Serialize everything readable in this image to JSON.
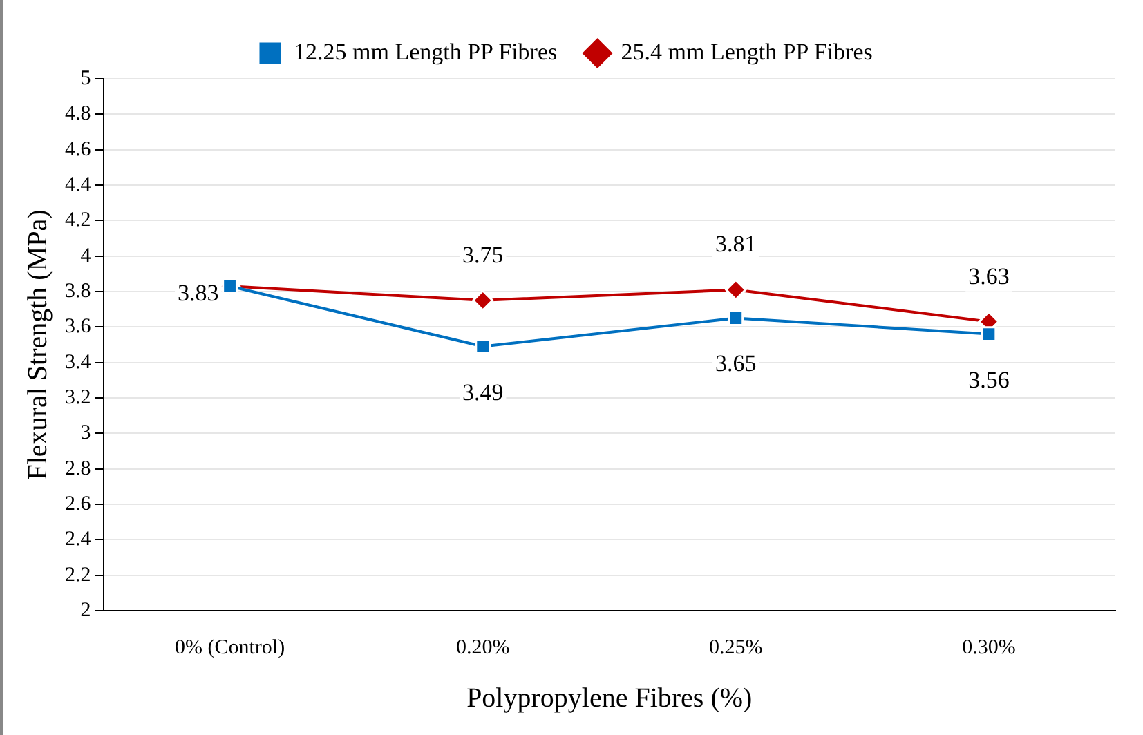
{
  "chart_data": {
    "type": "line",
    "xlabel": "Polypropylene Fibres (%)",
    "ylabel": "Flexural Strength (MPa)",
    "categories": [
      "0% (Control)",
      "0.20%",
      "0.25%",
      "0.30%"
    ],
    "series": [
      {
        "name": "12.25 mm Length PP Fibres",
        "color": "#0070c0",
        "values": [
          3.83,
          3.49,
          3.65,
          3.56
        ],
        "marker": "square",
        "value_labels": [
          "3.83",
          "3.49",
          "3.65",
          "3.56"
        ]
      },
      {
        "name": "25.4 mm Length PP Fibres",
        "color": "#c00000",
        "values": [
          3.83,
          3.75,
          3.81,
          3.63
        ],
        "marker": "diamond",
        "value_labels": [
          null,
          "3.75",
          "3.81",
          "3.63"
        ]
      }
    ],
    "ylim": [
      2,
      5
    ],
    "yticks": [
      2,
      2.2,
      2.4,
      2.6,
      2.8,
      3,
      3.2,
      3.4,
      3.6,
      3.8,
      4,
      4.2,
      4.4,
      4.6,
      4.8,
      5
    ],
    "grid": "y",
    "legend": "top"
  }
}
